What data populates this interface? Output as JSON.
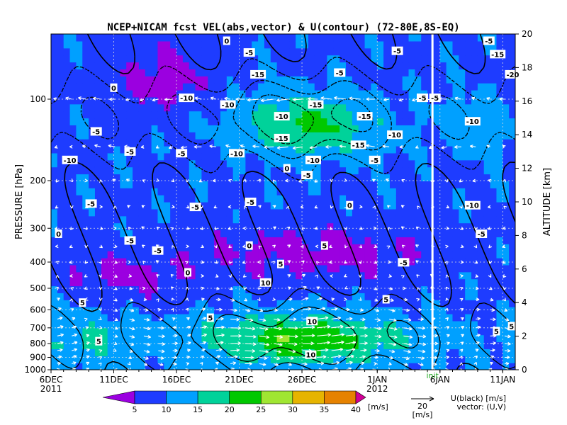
{
  "chart_data": {
    "type": "heatmap",
    "title": "NCEP+NICAM  fcst VEL(abs,vector) & U(contour)   (72-80E,8S-EQ)",
    "ylabel_left": "PRESSURE [hPa]",
    "ylabel_right": "ALTITUDE [km]",
    "x_ticks": [
      "6DEC",
      "11DEC",
      "16DEC",
      "21DEC",
      "26DEC",
      "1JAN",
      "6JAN",
      "11JAN"
    ],
    "x_tick_days": [
      0,
      5,
      10,
      15,
      20,
      26,
      31,
      36
    ],
    "x_year_labels": [
      {
        "text": "2011",
        "day": 0
      },
      {
        "text": "2012",
        "day": 26
      }
    ],
    "xlim_days": [
      0,
      37
    ],
    "init_label": "init",
    "init_day": 30.4,
    "y_ticks_hpa": [
      1000,
      900,
      800,
      700,
      600,
      500,
      400,
      300,
      200,
      100
    ],
    "y_ticks_km": [
      0,
      2,
      4,
      6,
      8,
      10,
      12,
      14,
      16,
      18,
      20
    ],
    "ylim_km": [
      0,
      20
    ],
    "colorbar": {
      "levels": [
        5,
        10,
        15,
        20,
        25,
        30,
        35,
        40
      ],
      "colors": [
        "#9b00e0",
        "#1e3cff",
        "#00a0ff",
        "#00d29a",
        "#00c800",
        "#a0e632",
        "#e6b400",
        "#e68200",
        "#d20096"
      ],
      "unit": "[m/s]"
    },
    "vector_key": {
      "value": "20",
      "unit": "[m/s]"
    },
    "legend_text": [
      "U(black) [m/s]",
      "vector: (U,V)"
    ],
    "contour_labels": [
      {
        "text": "0",
        "day": 14.0,
        "km": 19.6
      },
      {
        "text": "-5",
        "day": 15.8,
        "km": 18.9
      },
      {
        "text": "-5",
        "day": 27.6,
        "km": 19.0
      },
      {
        "text": "-5",
        "day": 34.9,
        "km": 19.6
      },
      {
        "text": "-15",
        "day": 35.6,
        "km": 18.8
      },
      {
        "text": "-20",
        "day": 36.8,
        "km": 17.6
      },
      {
        "text": "0",
        "day": 5.0,
        "km": 16.8
      },
      {
        "text": "-15",
        "day": 16.5,
        "km": 17.6
      },
      {
        "text": "-5",
        "day": 23.0,
        "km": 17.7
      },
      {
        "text": "-10",
        "day": 10.8,
        "km": 16.2
      },
      {
        "text": "-10",
        "day": 14.1,
        "km": 15.8
      },
      {
        "text": "-15",
        "day": 21.1,
        "km": 15.8
      },
      {
        "text": "-5",
        "day": 29.6,
        "km": 16.2
      },
      {
        "text": "-5",
        "day": 30.6,
        "km": 16.2
      },
      {
        "text": "-10",
        "day": 18.4,
        "km": 15.1
      },
      {
        "text": "-15",
        "day": 25.0,
        "km": 15.1
      },
      {
        "text": "-10",
        "day": 33.6,
        "km": 14.8
      },
      {
        "text": "-5",
        "day": 3.6,
        "km": 14.2
      },
      {
        "text": "-15",
        "day": 18.4,
        "km": 13.8
      },
      {
        "text": "-10",
        "day": 27.4,
        "km": 14.0
      },
      {
        "text": "-5",
        "day": 6.3,
        "km": 13.0
      },
      {
        "text": "-5",
        "day": 10.4,
        "km": 12.9
      },
      {
        "text": "-10",
        "day": 14.8,
        "km": 12.9
      },
      {
        "text": "-15",
        "day": 24.5,
        "km": 13.4
      },
      {
        "text": "-10",
        "day": 1.5,
        "km": 12.5
      },
      {
        "text": "-10",
        "day": 20.9,
        "km": 12.5
      },
      {
        "text": "-5",
        "day": 25.8,
        "km": 12.5
      },
      {
        "text": "0",
        "day": 18.8,
        "km": 12.0
      },
      {
        "text": "-5",
        "day": 20.4,
        "km": 11.6
      },
      {
        "text": "-5",
        "day": 3.2,
        "km": 9.9
      },
      {
        "text": "-5",
        "day": 11.5,
        "km": 9.7
      },
      {
        "text": "-5",
        "day": 15.9,
        "km": 10.0
      },
      {
        "text": "0",
        "day": 23.8,
        "km": 9.8
      },
      {
        "text": "-10",
        "day": 33.6,
        "km": 9.8
      },
      {
        "text": "0",
        "day": 0.6,
        "km": 8.1
      },
      {
        "text": "-5",
        "day": 6.3,
        "km": 7.7
      },
      {
        "text": "-5",
        "day": 8.5,
        "km": 7.1
      },
      {
        "text": "0",
        "day": 15.8,
        "km": 7.4
      },
      {
        "text": "5",
        "day": 21.8,
        "km": 7.4
      },
      {
        "text": "-5",
        "day": 34.3,
        "km": 8.1
      },
      {
        "text": "-5",
        "day": 28.1,
        "km": 6.4
      },
      {
        "text": "5",
        "day": 18.3,
        "km": 6.3
      },
      {
        "text": "0",
        "day": 10.9,
        "km": 5.8
      },
      {
        "text": "10",
        "day": 17.1,
        "km": 5.2
      },
      {
        "text": "5",
        "day": 2.5,
        "km": 4.0
      },
      {
        "text": "5",
        "day": 12.7,
        "km": 3.1
      },
      {
        "text": "5",
        "day": 26.7,
        "km": 4.2
      },
      {
        "text": "10",
        "day": 20.8,
        "km": 2.9
      },
      {
        "text": "5",
        "day": 35.5,
        "km": 2.3
      },
      {
        "text": "5",
        "day": 36.7,
        "km": 2.6
      },
      {
        "text": "5",
        "day": 3.8,
        "km": 1.7
      },
      {
        "text": "10",
        "day": 20.7,
        "km": 0.9
      }
    ]
  }
}
